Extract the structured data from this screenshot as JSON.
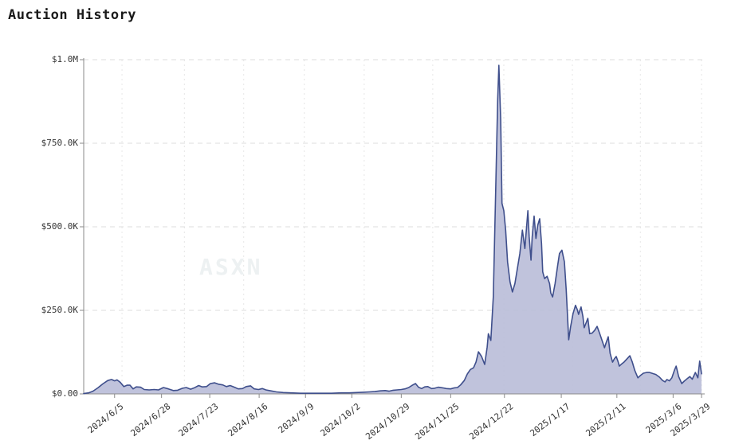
{
  "page": {
    "title": "Auction History",
    "watermark": "ASXN",
    "background": "#ffffff"
  },
  "chart_data": {
    "type": "area",
    "title": "Auction History",
    "xlabel": "",
    "ylabel": "",
    "unit": "USD",
    "ylim": [
      0,
      1000000
    ],
    "grid": true,
    "legend": false,
    "colors": {
      "line": "#3f4f8c",
      "fill": "#b9bdd8",
      "axis": "#8a8a8a",
      "grid_h": "#dcdcdc",
      "grid_v": "#e6e6e6",
      "text": "#333333",
      "title": "#1a1a1a",
      "watermark": "#edf1f2"
    },
    "y_ticks": [
      {
        "label": "$0.00",
        "value": 0
      },
      {
        "label": "$250.0K",
        "value": 250000
      },
      {
        "label": "$500.0K",
        "value": 500000
      },
      {
        "label": "$750.0K",
        "value": 750000
      },
      {
        "label": "$1.0M",
        "value": 1000000
      }
    ],
    "x_ticks": [
      {
        "label": "2024/6/5",
        "t": 0.05
      },
      {
        "label": "2024/6/28",
        "t": 0.126
      },
      {
        "label": "2024/7/23",
        "t": 0.204
      },
      {
        "label": "2024/8/16",
        "t": 0.284
      },
      {
        "label": "2024/9/9",
        "t": 0.359
      },
      {
        "label": "2024/10/2",
        "t": 0.434
      },
      {
        "label": "2024/10/29",
        "t": 0.514
      },
      {
        "label": "2024/11/25",
        "t": 0.594
      },
      {
        "label": "2024/12/22",
        "t": 0.681
      },
      {
        "label": "2025/1/17",
        "t": 0.773
      },
      {
        "label": "2025/2/11",
        "t": 0.863
      },
      {
        "label": "2025/3/6",
        "t": 0.954
      },
      {
        "label": "2025/3/29",
        "t": 1.0
      }
    ],
    "v_gridlines_t": [
      0.062,
      0.163,
      0.259,
      0.357,
      0.454,
      0.565,
      0.68,
      0.791,
      0.901,
      1.0
    ],
    "points": [
      [
        0.0,
        1000
      ],
      [
        0.008,
        3000
      ],
      [
        0.015,
        8000
      ],
      [
        0.023,
        18000
      ],
      [
        0.031,
        30000
      ],
      [
        0.039,
        40000
      ],
      [
        0.045,
        43000
      ],
      [
        0.05,
        39000
      ],
      [
        0.054,
        42000
      ],
      [
        0.059,
        35000
      ],
      [
        0.065,
        22000
      ],
      [
        0.07,
        26000
      ],
      [
        0.075,
        26000
      ],
      [
        0.08,
        15000
      ],
      [
        0.085,
        21000
      ],
      [
        0.092,
        20000
      ],
      [
        0.098,
        13000
      ],
      [
        0.106,
        12000
      ],
      [
        0.114,
        13000
      ],
      [
        0.121,
        12000
      ],
      [
        0.129,
        19000
      ],
      [
        0.137,
        15000
      ],
      [
        0.145,
        10000
      ],
      [
        0.152,
        11000
      ],
      [
        0.16,
        17000
      ],
      [
        0.166,
        19000
      ],
      [
        0.173,
        14000
      ],
      [
        0.179,
        18000
      ],
      [
        0.186,
        25000
      ],
      [
        0.192,
        21000
      ],
      [
        0.199,
        22000
      ],
      [
        0.205,
        31000
      ],
      [
        0.212,
        33000
      ],
      [
        0.218,
        29000
      ],
      [
        0.225,
        27000
      ],
      [
        0.231,
        22000
      ],
      [
        0.237,
        25000
      ],
      [
        0.244,
        20000
      ],
      [
        0.25,
        15000
      ],
      [
        0.257,
        16000
      ],
      [
        0.263,
        22000
      ],
      [
        0.27,
        24000
      ],
      [
        0.276,
        15000
      ],
      [
        0.283,
        13000
      ],
      [
        0.289,
        16000
      ],
      [
        0.295,
        12000
      ],
      [
        0.303,
        9000
      ],
      [
        0.312,
        6000
      ],
      [
        0.323,
        4000
      ],
      [
        0.335,
        3000
      ],
      [
        0.351,
        2000
      ],
      [
        0.368,
        2000
      ],
      [
        0.385,
        2000
      ],
      [
        0.401,
        2000
      ],
      [
        0.417,
        3000
      ],
      [
        0.43,
        3000
      ],
      [
        0.441,
        4000
      ],
      [
        0.452,
        5000
      ],
      [
        0.462,
        6000
      ],
      [
        0.471,
        7000
      ],
      [
        0.48,
        9000
      ],
      [
        0.488,
        10000
      ],
      [
        0.494,
        8000
      ],
      [
        0.501,
        11000
      ],
      [
        0.507,
        12000
      ],
      [
        0.514,
        13000
      ],
      [
        0.52,
        15000
      ],
      [
        0.526,
        19000
      ],
      [
        0.532,
        26000
      ],
      [
        0.537,
        31000
      ],
      [
        0.542,
        20000
      ],
      [
        0.547,
        16000
      ],
      [
        0.552,
        21000
      ],
      [
        0.557,
        22000
      ],
      [
        0.563,
        16000
      ],
      [
        0.568,
        17000
      ],
      [
        0.574,
        20000
      ],
      [
        0.581,
        18000
      ],
      [
        0.587,
        16000
      ],
      [
        0.594,
        15000
      ],
      [
        0.6,
        18000
      ],
      [
        0.605,
        19000
      ],
      [
        0.61,
        27000
      ],
      [
        0.616,
        40000
      ],
      [
        0.621,
        60000
      ],
      [
        0.626,
        73000
      ],
      [
        0.631,
        78000
      ],
      [
        0.635,
        95000
      ],
      [
        0.639,
        126000
      ],
      [
        0.644,
        112000
      ],
      [
        0.649,
        88000
      ],
      [
        0.653,
        140000
      ],
      [
        0.655,
        180000
      ],
      [
        0.659,
        160000
      ],
      [
        0.663,
        290000
      ],
      [
        0.667,
        620000
      ],
      [
        0.67,
        880000
      ],
      [
        0.672,
        983000
      ],
      [
        0.675,
        820000
      ],
      [
        0.677,
        570000
      ],
      [
        0.68,
        548000
      ],
      [
        0.683,
        490000
      ],
      [
        0.686,
        395000
      ],
      [
        0.69,
        335000
      ],
      [
        0.694,
        305000
      ],
      [
        0.698,
        330000
      ],
      [
        0.702,
        375000
      ],
      [
        0.706,
        420000
      ],
      [
        0.71,
        490000
      ],
      [
        0.714,
        435000
      ],
      [
        0.716,
        480000
      ],
      [
        0.719,
        548000
      ],
      [
        0.721,
        470000
      ],
      [
        0.724,
        400000
      ],
      [
        0.726,
        470000
      ],
      [
        0.729,
        532000
      ],
      [
        0.732,
        465000
      ],
      [
        0.735,
        505000
      ],
      [
        0.738,
        524000
      ],
      [
        0.741,
        450000
      ],
      [
        0.743,
        365000
      ],
      [
        0.746,
        345000
      ],
      [
        0.75,
        352000
      ],
      [
        0.754,
        330000
      ],
      [
        0.756,
        302000
      ],
      [
        0.759,
        290000
      ],
      [
        0.763,
        330000
      ],
      [
        0.767,
        382000
      ],
      [
        0.77,
        420000
      ],
      [
        0.774,
        430000
      ],
      [
        0.778,
        395000
      ],
      [
        0.781,
        310000
      ],
      [
        0.785,
        162000
      ],
      [
        0.788,
        200000
      ],
      [
        0.792,
        240000
      ],
      [
        0.796,
        265000
      ],
      [
        0.799,
        252000
      ],
      [
        0.801,
        238000
      ],
      [
        0.805,
        260000
      ],
      [
        0.808,
        232000
      ],
      [
        0.81,
        198000
      ],
      [
        0.813,
        212000
      ],
      [
        0.816,
        226000
      ],
      [
        0.819,
        180000
      ],
      [
        0.823,
        182000
      ],
      [
        0.827,
        190000
      ],
      [
        0.831,
        202000
      ],
      [
        0.835,
        182000
      ],
      [
        0.839,
        160000
      ],
      [
        0.843,
        138000
      ],
      [
        0.845,
        150000
      ],
      [
        0.849,
        171000
      ],
      [
        0.852,
        122000
      ],
      [
        0.856,
        95000
      ],
      [
        0.859,
        105000
      ],
      [
        0.862,
        112000
      ],
      [
        0.865,
        96000
      ],
      [
        0.867,
        83000
      ],
      [
        0.871,
        90000
      ],
      [
        0.875,
        96000
      ],
      [
        0.879,
        104000
      ],
      [
        0.884,
        114000
      ],
      [
        0.888,
        95000
      ],
      [
        0.892,
        70000
      ],
      [
        0.897,
        48000
      ],
      [
        0.901,
        55000
      ],
      [
        0.906,
        62000
      ],
      [
        0.911,
        64000
      ],
      [
        0.916,
        64000
      ],
      [
        0.921,
        61000
      ],
      [
        0.926,
        58000
      ],
      [
        0.932,
        50000
      ],
      [
        0.937,
        40000
      ],
      [
        0.941,
        36000
      ],
      [
        0.944,
        43000
      ],
      [
        0.948,
        39000
      ],
      [
        0.952,
        48000
      ],
      [
        0.956,
        70000
      ],
      [
        0.959,
        83000
      ],
      [
        0.963,
        52000
      ],
      [
        0.968,
        31000
      ],
      [
        0.972,
        38000
      ],
      [
        0.977,
        46000
      ],
      [
        0.981,
        52000
      ],
      [
        0.985,
        44000
      ],
      [
        0.99,
        64000
      ],
      [
        0.994,
        48000
      ],
      [
        0.997,
        98000
      ],
      [
        1.0,
        60000
      ]
    ]
  }
}
